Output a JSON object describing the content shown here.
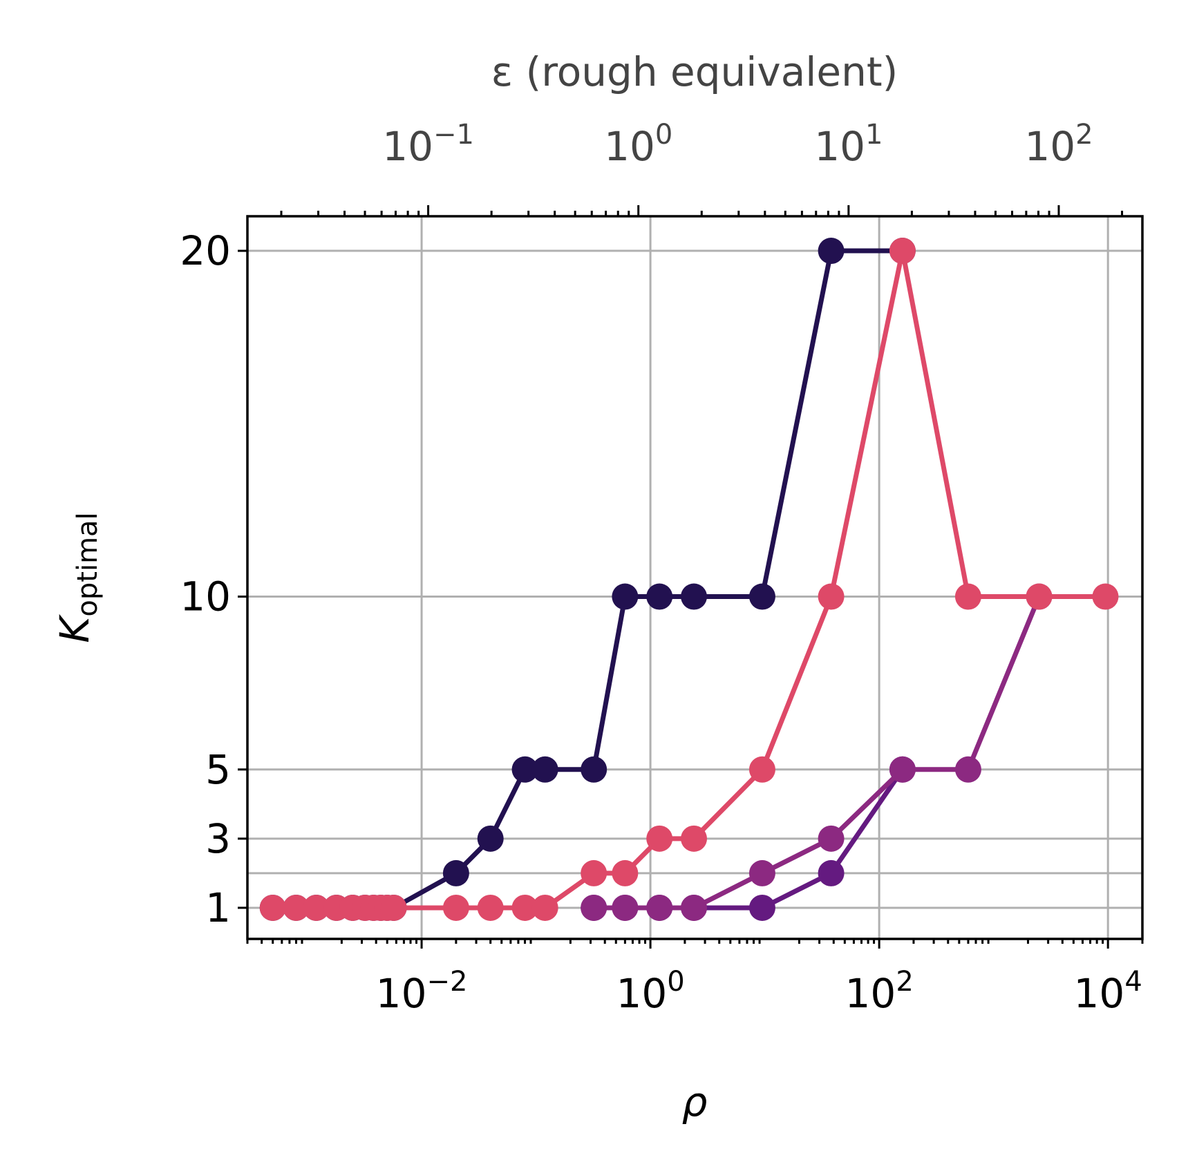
{
  "chart_data": {
    "type": "line",
    "xlabel": "ρ",
    "ylabel": "K",
    "ylabel_subscript": "optimal",
    "x_scale": "log",
    "xlim": [
      0.0003,
      20000
    ],
    "ylim": [
      0.1,
      21
    ],
    "x_ticks": [
      {
        "value": 0.01,
        "base": "10",
        "exp": "−2"
      },
      {
        "value": 1,
        "base": "10",
        "exp": "0"
      },
      {
        "value": 100,
        "base": "10",
        "exp": "2"
      },
      {
        "value": 10000,
        "base": "10",
        "exp": "4"
      }
    ],
    "y_ticks": [
      {
        "value": 1,
        "label": "1"
      },
      {
        "value": 3,
        "label": "3"
      },
      {
        "value": 5,
        "label": "5"
      },
      {
        "value": 10,
        "label": "10"
      },
      {
        "value": 20,
        "label": "20"
      }
    ],
    "y_grid_values": [
      1,
      2,
      3,
      5,
      10,
      20
    ],
    "grid": true,
    "secondary_x_axis": {
      "label": "ε (rough equivalent)",
      "scale": "log",
      "ticks": [
        {
          "value": 0.1,
          "base": "10",
          "exp": "−1"
        },
        {
          "value": 1,
          "base": "10",
          "exp": "0"
        },
        {
          "value": 10,
          "base": "10",
          "exp": "1"
        },
        {
          "value": 100,
          "base": "10",
          "exp": "2"
        }
      ],
      "eps_range": [
        0.0138,
        250
      ]
    },
    "series": [
      {
        "color": "#221150",
        "x": [
          0.0005,
          0.0008,
          0.0012,
          0.0018,
          0.0025,
          0.0032,
          0.0038,
          0.0044,
          0.005,
          0.0057,
          0.02,
          0.04,
          0.08,
          0.12,
          0.32,
          0.6,
          1.2,
          2.4,
          9.5,
          38,
          160
        ],
        "values": [
          1,
          1,
          1,
          1,
          1,
          1,
          1,
          1,
          1,
          1,
          2,
          3,
          5,
          5,
          5,
          10,
          10,
          10,
          10,
          20,
          20
        ]
      },
      {
        "color": "#641a80",
        "x": [
          0.32,
          0.6,
          1.2,
          2.4,
          9.5,
          38,
          160
        ],
        "values": [
          1,
          1,
          1,
          1,
          1,
          2,
          5
        ]
      },
      {
        "color": "#8c2981",
        "x": [
          0.32,
          0.6,
          1.2,
          2.4,
          9.5,
          38,
          160,
          600,
          2500
        ],
        "values": [
          1,
          1,
          1,
          1,
          2,
          3,
          5,
          5,
          10
        ]
      },
      {
        "color": "#de4968",
        "x": [
          0.0005,
          0.0008,
          0.0012,
          0.0018,
          0.0025,
          0.0032,
          0.0038,
          0.0044,
          0.005,
          0.0057,
          0.02,
          0.04,
          0.08,
          0.12,
          0.32,
          0.6,
          1.2,
          2.4,
          9.5,
          38,
          160,
          600,
          2500,
          9500
        ],
        "values": [
          1,
          1,
          1,
          1,
          1,
          1,
          1,
          1,
          1,
          1,
          1,
          1,
          1,
          1,
          2,
          2,
          3,
          3,
          5,
          10,
          20,
          10,
          10,
          10
        ]
      }
    ]
  }
}
